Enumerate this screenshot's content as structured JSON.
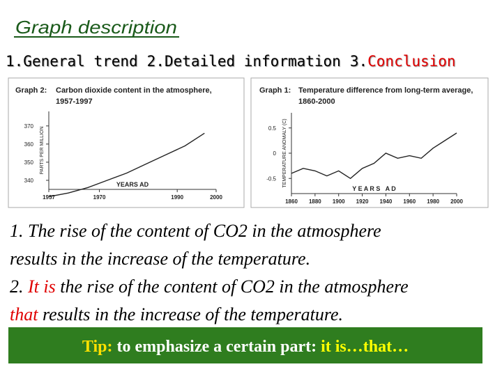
{
  "header": {
    "title": "Graph description",
    "steps": [
      {
        "number": "1.",
        "label": "General trend",
        "color": "#000000"
      },
      {
        "number": "2.",
        "label": "Detailed information",
        "color": "#000000"
      },
      {
        "number": "3.",
        "label": "Conclusion",
        "color": "#e00000"
      }
    ]
  },
  "chart_data": [
    {
      "type": "line",
      "label": "Graph 2:",
      "title": [
        "Carbon dioxide content in the atmosphere,",
        "1957-1997"
      ],
      "y_label": "PARTS PER MILLION",
      "x_label": "YEARS AD",
      "x": [
        1957,
        1962,
        1967,
        1972,
        1977,
        1982,
        1987,
        1992,
        1997
      ],
      "values": [
        331,
        333,
        336,
        340,
        344,
        349,
        354,
        359,
        366
      ],
      "color": "#222222",
      "xlim": [
        1957,
        2000
      ],
      "xticks": [
        1957,
        1970,
        1990,
        2000
      ],
      "ylim": [
        335,
        378
      ],
      "yticks": [
        340,
        350,
        360,
        370
      ]
    },
    {
      "type": "line",
      "label": "Graph 1:",
      "title": [
        "Temperature difference from long-term average,",
        "1860-2000"
      ],
      "y_label": "TEMPERATURE ANOMALY (C)",
      "x_label": "Y E A R S   A D",
      "x": [
        1860,
        1870,
        1880,
        1890,
        1900,
        1910,
        1920,
        1930,
        1940,
        1950,
        1960,
        1970,
        1980,
        1990,
        2000
      ],
      "values": [
        -0.4,
        -0.3,
        -0.35,
        -0.45,
        -0.35,
        -0.5,
        -0.3,
        -0.2,
        0.0,
        -0.1,
        -0.05,
        -0.1,
        0.1,
        0.25,
        0.4
      ],
      "color": "#222222",
      "xlim": [
        1860,
        2000
      ],
      "xticks": [
        1860,
        1880,
        1900,
        1920,
        1940,
        1960,
        1980,
        2000
      ],
      "ylim": [
        -0.8,
        0.8
      ],
      "yticks": [
        0.5,
        0,
        -0.5
      ]
    }
  ],
  "body": {
    "lines": [
      [
        {
          "text": "1. The rise of the content of CO2 in the atmosphere",
          "color": "#000000"
        }
      ],
      [
        {
          "text": "results in the increase of the temperature.",
          "color": "#000000"
        }
      ],
      [
        {
          "text": "2. ",
          "color": "#000000"
        },
        {
          "text": "It is",
          "color": "#e00000"
        },
        {
          "text": " the rise of the content of CO2 in the atmosphere",
          "color": "#000000"
        }
      ],
      [
        {
          "text": "that",
          "color": "#e00000"
        },
        {
          "text": " results in the increase of the temperature.",
          "color": "#000000"
        }
      ]
    ]
  },
  "tip": {
    "background": "#2f7d1f",
    "segments": [
      {
        "text": "Tip:",
        "color": "#ffe000"
      },
      {
        "text": " to emphasize a certain part: ",
        "color": "#ffffff"
      },
      {
        "text": "it is…that…",
        "color": "#ffff00"
      }
    ]
  }
}
